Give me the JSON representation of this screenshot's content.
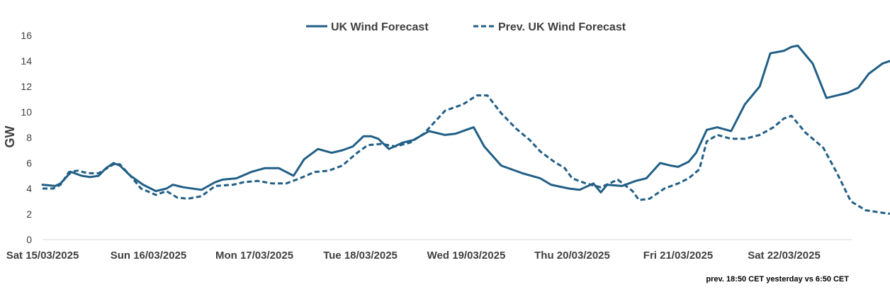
{
  "chart_data": {
    "type": "line",
    "title": "",
    "xlabel": "",
    "ylabel": "GW",
    "ylim": [
      0,
      16
    ],
    "yticks": [
      0,
      2,
      4,
      6,
      8,
      10,
      12,
      14,
      16
    ],
    "x_range_days": [
      0,
      8
    ],
    "x_ticks": [
      {
        "day": 0,
        "label": "Sat 15/03/2025"
      },
      {
        "day": 1,
        "label": "Sun 16/03/2025"
      },
      {
        "day": 2,
        "label": "Mon 17/03/2025"
      },
      {
        "day": 3,
        "label": "Tue 18/03/2025"
      },
      {
        "day": 4,
        "label": "Wed 19/03/2025"
      },
      {
        "day": 5,
        "label": "Thu 20/03/2025"
      },
      {
        "day": 6,
        "label": "Fri 21/03/2025"
      },
      {
        "day": 7,
        "label": "Sat 22/03/2025"
      }
    ],
    "legend_position": "top-center",
    "series": [
      {
        "name": "UK Wind Forecast",
        "style": "solid",
        "color": "#215F86",
        "points": [
          [
            0.0,
            4.3
          ],
          [
            0.12,
            4.2
          ],
          [
            0.17,
            4.4
          ],
          [
            0.27,
            5.3
          ],
          [
            0.37,
            5.0
          ],
          [
            0.45,
            4.9
          ],
          [
            0.53,
            5.0
          ],
          [
            0.6,
            5.6
          ],
          [
            0.67,
            6.0
          ],
          [
            0.73,
            5.8
          ],
          [
            0.83,
            5.0
          ],
          [
            0.95,
            4.3
          ],
          [
            1.07,
            3.8
          ],
          [
            1.17,
            4.0
          ],
          [
            1.23,
            4.3
          ],
          [
            1.33,
            4.1
          ],
          [
            1.5,
            3.9
          ],
          [
            1.63,
            4.5
          ],
          [
            1.7,
            4.7
          ],
          [
            1.83,
            4.8
          ],
          [
            1.97,
            5.3
          ],
          [
            2.1,
            5.6
          ],
          [
            2.23,
            5.6
          ],
          [
            2.37,
            5.0
          ],
          [
            2.47,
            6.3
          ],
          [
            2.6,
            7.1
          ],
          [
            2.73,
            6.8
          ],
          [
            2.83,
            7.0
          ],
          [
            2.93,
            7.3
          ],
          [
            3.03,
            8.1
          ],
          [
            3.1,
            8.1
          ],
          [
            3.17,
            7.9
          ],
          [
            3.27,
            7.1
          ],
          [
            3.4,
            7.6
          ],
          [
            3.5,
            7.8
          ],
          [
            3.65,
            8.5
          ],
          [
            3.8,
            8.2
          ],
          [
            3.9,
            8.3
          ],
          [
            4.0,
            8.6
          ],
          [
            4.07,
            8.8
          ],
          [
            4.17,
            7.3
          ],
          [
            4.33,
            5.8
          ],
          [
            4.53,
            5.2
          ],
          [
            4.7,
            4.8
          ],
          [
            4.8,
            4.3
          ],
          [
            4.97,
            4.0
          ],
          [
            5.07,
            3.9
          ],
          [
            5.2,
            4.4
          ],
          [
            5.27,
            3.7
          ],
          [
            5.33,
            4.3
          ],
          [
            5.47,
            4.2
          ],
          [
            5.6,
            4.6
          ],
          [
            5.7,
            4.8
          ],
          [
            5.83,
            6.0
          ],
          [
            5.93,
            5.8
          ],
          [
            6.0,
            5.7
          ],
          [
            6.1,
            6.1
          ],
          [
            6.17,
            6.8
          ],
          [
            6.27,
            8.6
          ],
          [
            6.37,
            8.8
          ],
          [
            6.5,
            8.5
          ],
          [
            6.63,
            10.6
          ],
          [
            6.77,
            12.0
          ],
          [
            6.87,
            14.6
          ],
          [
            7.0,
            14.8
          ],
          [
            7.07,
            15.1
          ],
          [
            7.13,
            15.2
          ],
          [
            7.27,
            13.8
          ],
          [
            7.4,
            11.1
          ],
          [
            7.5,
            11.3
          ],
          [
            7.6,
            11.5
          ],
          [
            7.7,
            11.9
          ],
          [
            7.8,
            13.0
          ],
          [
            7.93,
            13.8
          ],
          [
            8.0,
            14.0
          ],
          [
            8.1,
            14.4
          ],
          [
            8.17,
            13.3
          ],
          [
            8.23,
            12.1
          ],
          [
            8.37,
            12.6
          ],
          [
            8.43,
            13.1
          ],
          [
            8.5,
            14.0
          ]
        ]
      },
      {
        "name": "Prev. UK Wind Forecast",
        "style": "dashed",
        "color": "#215F86",
        "points": [
          [
            0.0,
            4.0
          ],
          [
            0.1,
            4.0
          ],
          [
            0.17,
            4.3
          ],
          [
            0.25,
            5.3
          ],
          [
            0.33,
            5.4
          ],
          [
            0.43,
            5.2
          ],
          [
            0.53,
            5.2
          ],
          [
            0.67,
            5.9
          ],
          [
            0.73,
            5.9
          ],
          [
            0.83,
            5.0
          ],
          [
            0.93,
            4.0
          ],
          [
            1.07,
            3.5
          ],
          [
            1.17,
            3.8
          ],
          [
            1.27,
            3.3
          ],
          [
            1.37,
            3.2
          ],
          [
            1.5,
            3.4
          ],
          [
            1.63,
            4.2
          ],
          [
            1.8,
            4.3
          ],
          [
            1.9,
            4.5
          ],
          [
            2.03,
            4.6
          ],
          [
            2.17,
            4.4
          ],
          [
            2.3,
            4.4
          ],
          [
            2.43,
            4.8
          ],
          [
            2.57,
            5.3
          ],
          [
            2.7,
            5.4
          ],
          [
            2.83,
            5.8
          ],
          [
            2.97,
            6.8
          ],
          [
            3.07,
            7.4
          ],
          [
            3.2,
            7.5
          ],
          [
            3.33,
            7.3
          ],
          [
            3.47,
            7.6
          ],
          [
            3.6,
            8.3
          ],
          [
            3.7,
            9.2
          ],
          [
            3.8,
            10.1
          ],
          [
            3.97,
            10.6
          ],
          [
            4.1,
            11.3
          ],
          [
            4.2,
            11.3
          ],
          [
            4.33,
            9.9
          ],
          [
            4.47,
            8.7
          ],
          [
            4.6,
            7.8
          ],
          [
            4.7,
            6.9
          ],
          [
            4.83,
            6.1
          ],
          [
            4.93,
            5.6
          ],
          [
            5.0,
            4.8
          ],
          [
            5.13,
            4.4
          ],
          [
            5.27,
            4.1
          ],
          [
            5.43,
            4.7
          ],
          [
            5.57,
            3.8
          ],
          [
            5.63,
            3.1
          ],
          [
            5.73,
            3.2
          ],
          [
            5.87,
            4.0
          ],
          [
            6.0,
            4.4
          ],
          [
            6.1,
            4.8
          ],
          [
            6.2,
            5.5
          ],
          [
            6.27,
            7.7
          ],
          [
            6.37,
            8.2
          ],
          [
            6.5,
            7.9
          ],
          [
            6.63,
            7.9
          ],
          [
            6.77,
            8.2
          ],
          [
            6.9,
            8.8
          ],
          [
            7.0,
            9.5
          ],
          [
            7.07,
            9.7
          ],
          [
            7.2,
            8.4
          ],
          [
            7.37,
            7.2
          ],
          [
            7.5,
            5.2
          ],
          [
            7.63,
            3.0
          ],
          [
            7.77,
            2.3
          ],
          [
            7.93,
            2.1
          ],
          [
            8.03,
            2.0
          ],
          [
            8.13,
            1.9
          ],
          [
            8.23,
            1.6
          ],
          [
            8.33,
            1.0
          ],
          [
            8.43,
            1.0
          ],
          [
            8.5,
            1.0
          ],
          [
            8.57,
            0.6
          ],
          [
            8.63,
            0.5
          ],
          [
            8.7,
            0.7
          ]
        ]
      }
    ],
    "annotation": "prev. 18:50 CET yesterday vs  6:50 CET"
  }
}
